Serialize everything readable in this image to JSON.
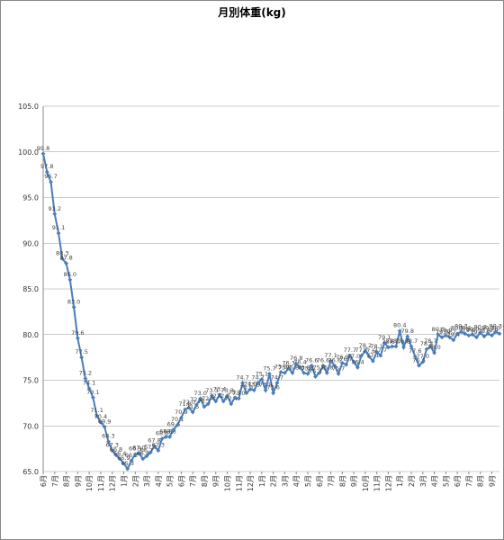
{
  "chart_data": {
    "type": "line",
    "title": "月別体重(kg)",
    "categories": [
      "6月",
      null,
      null,
      "7月",
      null,
      null,
      "8月",
      null,
      null,
      "9月",
      null,
      null,
      "10月",
      null,
      null,
      "11月",
      null,
      null,
      "12月",
      null,
      null,
      "1月",
      null,
      null,
      "2月",
      null,
      null,
      "3月",
      null,
      null,
      "4月",
      null,
      null,
      "5月",
      null,
      null,
      "6月",
      null,
      null,
      "7月",
      null,
      null,
      "8月",
      null,
      null,
      "9月",
      null,
      null,
      "10月",
      null,
      null,
      "11月",
      null,
      null,
      "12月",
      null,
      null,
      "1月",
      null,
      null,
      "2月",
      null,
      null,
      "3月",
      null,
      null,
      "4月",
      null,
      null,
      "5月",
      null,
      null,
      "6月",
      null,
      null,
      "7月",
      null,
      null,
      "8月",
      null,
      null,
      "9月",
      null,
      null,
      "10月",
      null,
      null,
      "11月",
      null,
      null,
      "12月",
      null,
      null,
      "1月",
      null,
      null,
      "2月",
      null,
      null,
      "3月",
      null,
      null,
      "4月",
      null,
      null,
      "5月",
      null,
      null,
      "6月",
      null,
      null,
      "7月",
      null,
      null,
      "8月",
      null,
      null,
      "9月",
      null,
      null
    ],
    "series": [
      {
        "color": "#4a7ebb",
        "values": [
          99.8,
          97.8,
          96.7,
          93.2,
          91.1,
          88.3,
          87.8,
          86.0,
          83.0,
          79.6,
          77.5,
          75.2,
          74.1,
          73.1,
          71.1,
          70.4,
          69.9,
          68.3,
          67.3,
          66.8,
          66.4,
          65.9,
          65.3,
          66.2,
          66.9,
          67.0,
          66.4,
          66.7,
          67.1,
          67.8,
          67.3,
          68.6,
          68.8,
          68.8,
          69.6,
          70.1,
          70.9,
          71.8,
          72.0,
          71.5,
          72.3,
          73.0,
          72.1,
          72.4,
          73.3,
          72.7,
          73.4,
          72.7,
          73.3,
          72.4,
          73.1,
          73.0,
          74.7,
          73.6,
          74.0,
          73.9,
          74.7,
          75.1,
          73.9,
          75.7,
          73.6,
          74.7,
          75.9,
          75.8,
          76.3,
          75.8,
          76.8,
          76.4,
          75.8,
          75.7,
          76.6,
          75.4,
          75.8,
          76.6,
          75.8,
          77.1,
          76.6,
          75.7,
          76.9,
          76.7,
          77.7,
          77.0,
          76.4,
          77.7,
          78.2,
          77.6,
          77.1,
          78.1,
          77.7,
          79.1,
          78.6,
          78.7,
          78.7,
          80.4,
          78.6,
          79.8,
          78.7,
          77.6,
          76.6,
          77.0,
          78.4,
          78.7,
          78.0,
          80.0,
          79.7,
          79.9,
          79.7,
          79.4,
          80.1,
          80.3,
          80.1,
          79.9,
          80.0,
          79.7,
          80.2,
          79.8,
          80.1,
          79.9,
          80.3,
          80.1
        ],
        "value_labels": [
          "99.8",
          "97.8",
          "96.7",
          "93.2",
          "91.1",
          "88.3",
          "87.8",
          "86.0",
          "83.0",
          "79.6",
          "77.5",
          "75.2",
          "74.1",
          "73.1",
          "71.1",
          "70.4",
          "69.9",
          "68.3",
          "67.3",
          "66.8",
          "66.4",
          "65.9",
          "65.3",
          "66.2",
          "66.9",
          "67.0",
          "66.4",
          "66.7",
          "67.1",
          "67.8",
          "67.3",
          "68.6",
          "68.8",
          "68.8",
          "69.6",
          "70.1",
          "70.9",
          "71.8",
          "72.0",
          "71.5",
          "72.3",
          "73.0",
          "72.1",
          "72.4",
          "73.3",
          "72.7",
          "73.4",
          "72.7",
          "73.3",
          "72.4",
          "73.1",
          "73.0",
          "74.7",
          "73.6",
          "74.0",
          "73.9",
          "74.7",
          "75.1",
          "73.9",
          "75.7",
          "73.6",
          "74.7",
          "75.9",
          "75.8",
          "76.3",
          "75.8",
          "76.8",
          "76.4",
          "75.8",
          "75.7",
          "76.6",
          "75.4",
          "75.8",
          "76.6",
          "75.8",
          "77.1",
          "76.6",
          "75.7",
          "76.9",
          "76.7",
          "77.7",
          "77.0",
          "76.4",
          "77.7",
          "78.2",
          "77.6",
          "77.1",
          "78.1",
          "77.7",
          "79.1",
          "78.6",
          "78.7",
          "78.7",
          "80.4",
          "78.6",
          "79.8",
          "78.7",
          "77.6",
          "76.6",
          "77.0",
          "78.4",
          "78.7",
          "78.0",
          "80.0",
          "79.7",
          "79.9",
          "79.7",
          "79.4",
          "80.1",
          "80.3",
          "80.1",
          "79.9",
          "80.0",
          "79.7",
          "80.2",
          "79.8",
          "80.1",
          "79.9",
          "80.3",
          "80.1"
        ]
      }
    ],
    "ylim": [
      65,
      105
    ],
    "yticks": [
      {
        "value": 65,
        "label": "65.0"
      },
      {
        "value": 70,
        "label": "70.0"
      },
      {
        "value": 75,
        "label": "75.0"
      },
      {
        "value": 80,
        "label": "80.0"
      },
      {
        "value": 85,
        "label": "85.0"
      },
      {
        "value": 90,
        "label": "90.0"
      },
      {
        "value": 95,
        "label": "95.0"
      },
      {
        "value": 100,
        "label": "100.0"
      },
      {
        "value": 105,
        "label": "105.0"
      }
    ],
    "grid": true
  }
}
